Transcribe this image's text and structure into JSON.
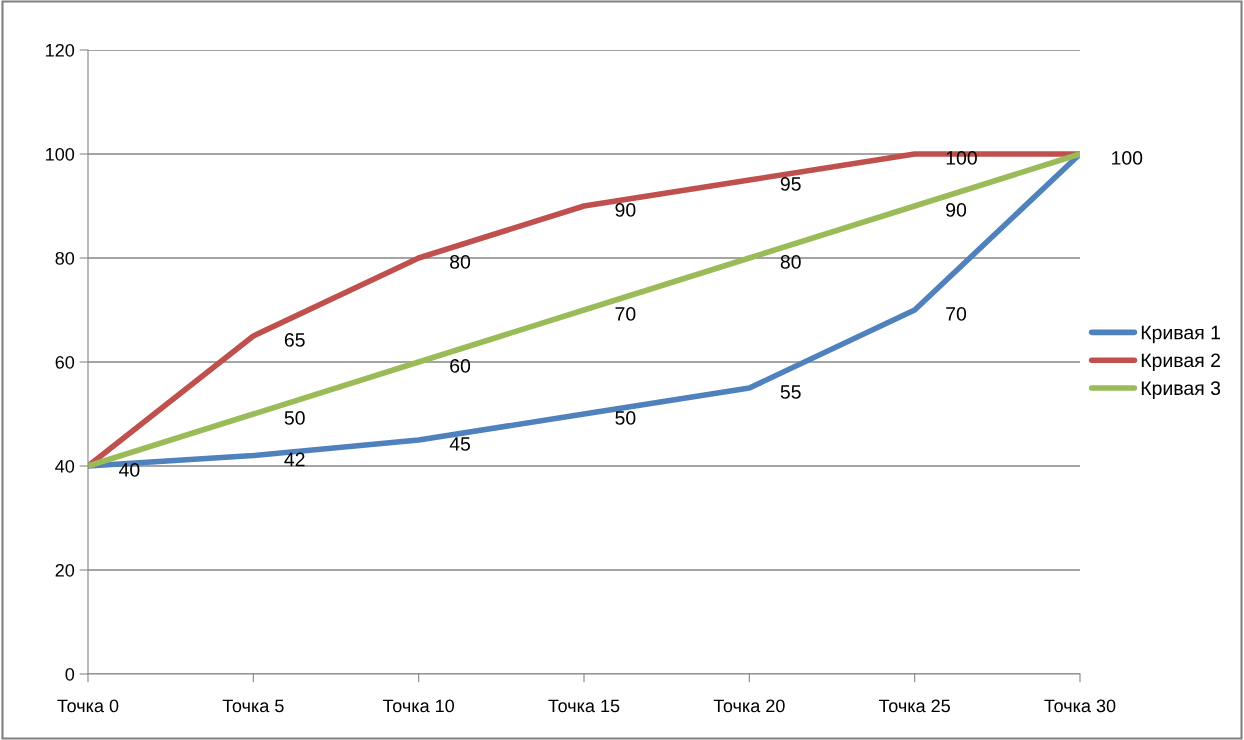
{
  "chart_data": {
    "type": "line",
    "categories": [
      "Точка 0",
      "Точка 5",
      "Точка 10",
      "Точка 15",
      "Точка 20",
      "Точка 25",
      "Точка 30"
    ],
    "series": [
      {
        "name": "Кривая 1",
        "color": "#4f81bd",
        "values": [
          40,
          42,
          45,
          50,
          55,
          70,
          100
        ]
      },
      {
        "name": "Кривая 2",
        "color": "#c0504d",
        "values": [
          40,
          65,
          80,
          90,
          95,
          100,
          100
        ],
        "value_labels": [
          null,
          "65",
          "80",
          "90",
          "95",
          "100",
          null
        ]
      },
      {
        "name": "Кривая 3",
        "color": "#9bbb59",
        "values": [
          40,
          50,
          60,
          70,
          80,
          90,
          100
        ],
        "value_labels": [
          null,
          "50",
          "60",
          "70",
          "80",
          "90",
          null
        ]
      }
    ],
    "ylim": [
      0,
      120
    ],
    "yticks": [
      0,
      20,
      40,
      60,
      80,
      100,
      120
    ],
    "grid": "y",
    "legend": "right",
    "data_labels": true,
    "marker": "none",
    "line_style": "solid"
  }
}
